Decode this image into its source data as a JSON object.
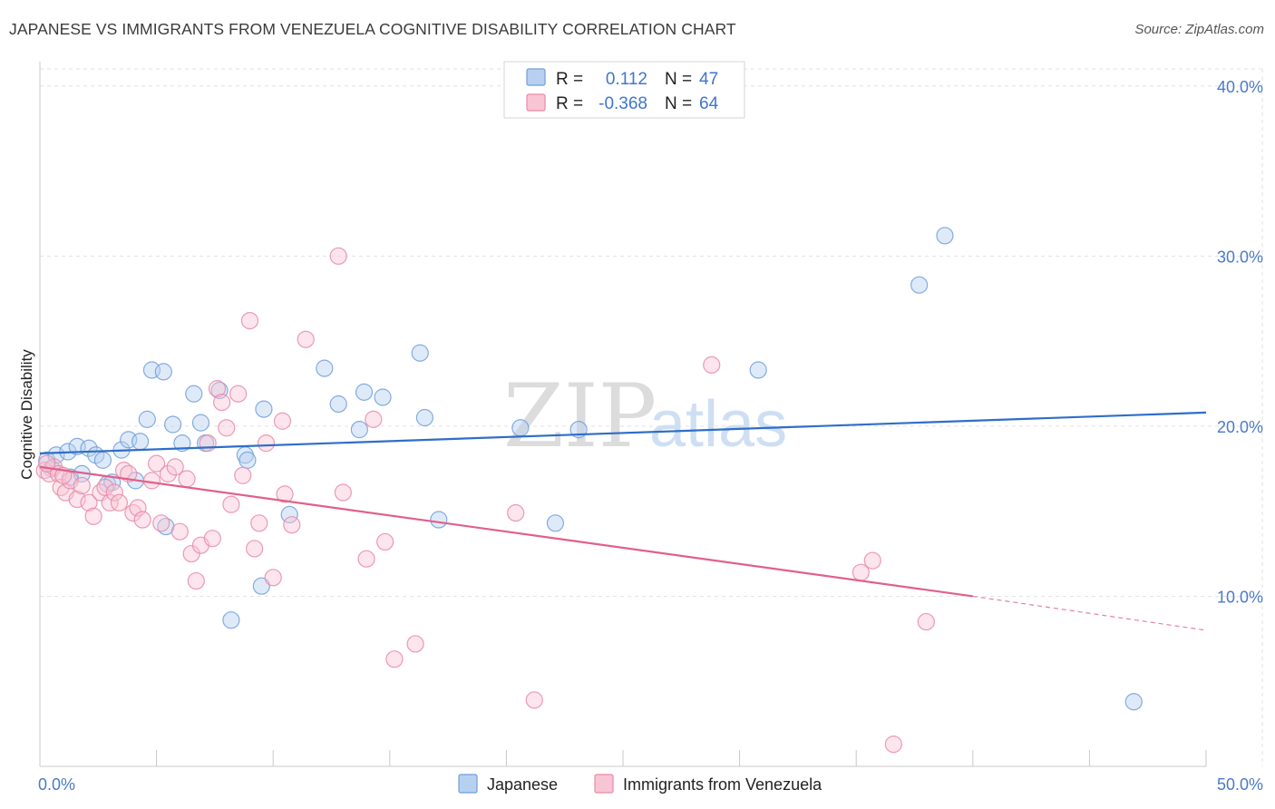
{
  "title": "JAPANESE VS IMMIGRANTS FROM VENEZUELA COGNITIVE DISABILITY CORRELATION CHART",
  "source": "Source: ZipAtlas.com",
  "watermark": {
    "zip": "ZIP",
    "atlas": "atlas"
  },
  "legend_top": {
    "rows": [
      {
        "r_label": "R =",
        "r_value": "0.112",
        "n_label": "N =",
        "n_value": "47"
      },
      {
        "r_label": "R =",
        "r_value": "-0.368",
        "n_label": "N =",
        "n_value": "64"
      }
    ]
  },
  "legend_bottom": {
    "items": [
      "Japanese",
      "Immigrants from Venezuela"
    ]
  },
  "colors": {
    "japanese_fill": "#b8d0f0",
    "japanese_stroke": "#6f9fdc",
    "japanese_line": "#2f6ec8",
    "venezuela_fill": "#f8c5d5",
    "venezuela_stroke": "#e88aa8",
    "venezuela_line": "#e0608a",
    "grid": "#e2e2e2",
    "tick_text": "#4a7ac8"
  },
  "chart_data": {
    "type": "scatter",
    "title": "JAPANESE VS IMMIGRANTS FROM VENEZUELA COGNITIVE DISABILITY CORRELATION CHART",
    "xlabel": "",
    "ylabel": "Cognitive Disability",
    "xlim": [
      0,
      50
    ],
    "ylim": [
      0,
      41
    ],
    "x_tick_labels": [
      "0.0%",
      "50.0%"
    ],
    "y_ticks": [
      10,
      20,
      30,
      40
    ],
    "y_tick_labels": [
      "10.0%",
      "20.0%",
      "30.0%",
      "40.0%"
    ],
    "grid": true,
    "legend_position": "top-center",
    "series": [
      {
        "name": "Japanese",
        "r": 0.112,
        "n": 47,
        "trend": {
          "x": [
            0,
            50
          ],
          "y": [
            18.4,
            20.8
          ]
        },
        "points": [
          [
            0.3,
            18.0
          ],
          [
            0.5,
            17.5
          ],
          [
            0.7,
            18.3
          ],
          [
            1.2,
            18.5
          ],
          [
            1.3,
            17.0
          ],
          [
            1.6,
            18.8
          ],
          [
            1.8,
            17.2
          ],
          [
            2.1,
            18.7
          ],
          [
            2.4,
            18.3
          ],
          [
            2.7,
            18.0
          ],
          [
            2.9,
            16.6
          ],
          [
            3.1,
            16.7
          ],
          [
            3.5,
            18.6
          ],
          [
            3.8,
            19.2
          ],
          [
            4.1,
            16.8
          ],
          [
            4.3,
            19.1
          ],
          [
            4.6,
            20.4
          ],
          [
            4.8,
            23.3
          ],
          [
            5.3,
            23.2
          ],
          [
            5.4,
            14.1
          ],
          [
            5.7,
            20.1
          ],
          [
            6.1,
            19.0
          ],
          [
            6.6,
            21.9
          ],
          [
            6.9,
            20.2
          ],
          [
            7.1,
            19.0
          ],
          [
            7.7,
            22.1
          ],
          [
            8.2,
            8.6
          ],
          [
            8.8,
            18.3
          ],
          [
            8.9,
            18.0
          ],
          [
            9.5,
            10.6
          ],
          [
            9.6,
            21.0
          ],
          [
            10.7,
            14.8
          ],
          [
            12.2,
            23.4
          ],
          [
            12.8,
            21.3
          ],
          [
            13.7,
            19.8
          ],
          [
            13.9,
            22.0
          ],
          [
            14.7,
            21.7
          ],
          [
            16.3,
            24.3
          ],
          [
            16.5,
            20.5
          ],
          [
            17.1,
            14.5
          ],
          [
            20.6,
            19.9
          ],
          [
            22.1,
            14.3
          ],
          [
            23.1,
            19.8
          ],
          [
            30.8,
            23.3
          ],
          [
            37.7,
            28.3
          ],
          [
            38.8,
            31.2
          ],
          [
            46.9,
            3.8
          ]
        ]
      },
      {
        "name": "Immigrants from Venezuela",
        "r": -0.368,
        "n": 64,
        "trend": {
          "x": [
            0,
            40
          ],
          "y": [
            17.6,
            10.0
          ]
        },
        "trend_extension": {
          "x": [
            40,
            50
          ],
          "y": [
            10.0,
            8.0
          ]
        },
        "points": [
          [
            0.2,
            17.4
          ],
          [
            0.4,
            17.2
          ],
          [
            0.6,
            17.6
          ],
          [
            0.8,
            17.2
          ],
          [
            0.9,
            16.4
          ],
          [
            1.1,
            16.1
          ],
          [
            1.3,
            16.8
          ],
          [
            1.6,
            15.7
          ],
          [
            1.8,
            16.5
          ],
          [
            2.1,
            15.5
          ],
          [
            2.3,
            14.7
          ],
          [
            2.6,
            16.1
          ],
          [
            2.8,
            16.4
          ],
          [
            3.0,
            15.5
          ],
          [
            3.2,
            16.1
          ],
          [
            3.4,
            15.5
          ],
          [
            3.6,
            17.4
          ],
          [
            3.8,
            17.2
          ],
          [
            4.0,
            14.9
          ],
          [
            4.2,
            15.2
          ],
          [
            4.4,
            14.5
          ],
          [
            4.8,
            16.8
          ],
          [
            5.0,
            17.8
          ],
          [
            5.2,
            14.3
          ],
          [
            5.5,
            17.2
          ],
          [
            5.8,
            17.6
          ],
          [
            6.0,
            13.8
          ],
          [
            6.3,
            16.9
          ],
          [
            6.5,
            12.5
          ],
          [
            6.7,
            10.9
          ],
          [
            6.9,
            13.0
          ],
          [
            7.2,
            19.0
          ],
          [
            7.4,
            13.4
          ],
          [
            7.6,
            22.2
          ],
          [
            7.8,
            21.4
          ],
          [
            8.0,
            19.9
          ],
          [
            8.2,
            15.4
          ],
          [
            8.5,
            21.9
          ],
          [
            8.7,
            17.1
          ],
          [
            9.0,
            26.2
          ],
          [
            9.2,
            12.8
          ],
          [
            9.4,
            14.3
          ],
          [
            9.7,
            19.0
          ],
          [
            10.0,
            11.1
          ],
          [
            10.4,
            20.3
          ],
          [
            10.5,
            16.0
          ],
          [
            10.8,
            14.2
          ],
          [
            11.4,
            25.1
          ],
          [
            12.8,
            30.0
          ],
          [
            13.0,
            16.1
          ],
          [
            14.0,
            12.2
          ],
          [
            14.3,
            20.4
          ],
          [
            14.8,
            13.2
          ],
          [
            15.2,
            6.3
          ],
          [
            16.1,
            7.2
          ],
          [
            20.4,
            14.9
          ],
          [
            21.2,
            3.9
          ],
          [
            28.8,
            23.6
          ],
          [
            35.2,
            11.4
          ],
          [
            35.7,
            12.1
          ],
          [
            36.6,
            1.3
          ],
          [
            38.0,
            8.5
          ],
          [
            0.3,
            17.8
          ],
          [
            1.0,
            17.1
          ]
        ]
      }
    ]
  }
}
